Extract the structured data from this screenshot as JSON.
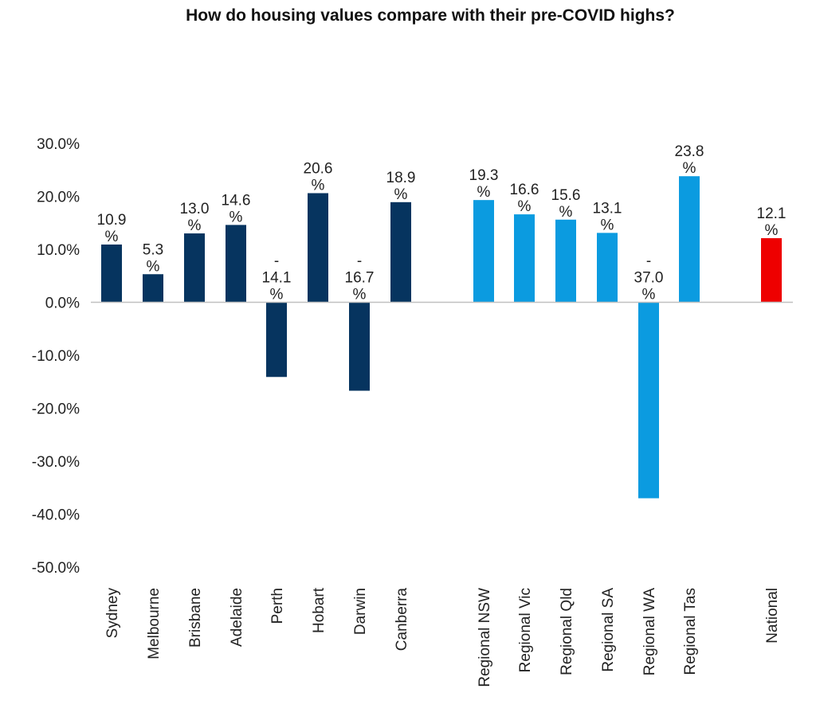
{
  "chart_data": {
    "type": "bar",
    "title": "How do housing values compare with their pre-COVID highs?",
    "xlabel": "",
    "ylabel": "",
    "ylim": [
      -50,
      30
    ],
    "y_ticks": [
      "30.0%",
      "20.0%",
      "10.0%",
      "0.0%",
      "-10.0%",
      "-20.0%",
      "-30.0%",
      "-40.0%",
      "-50.0%"
    ],
    "y_tick_values": [
      30,
      20,
      10,
      0,
      -10,
      -20,
      -30,
      -40,
      -50
    ],
    "grid": false,
    "legend": "none",
    "categories": [
      "Sydney",
      "Melbourne",
      "Brisbane",
      "Adelaide",
      "Perth",
      "Hobart",
      "Darwin",
      "Canberra",
      "Regional NSW",
      "Regional Vic",
      "Regional Qld",
      "Regional SA",
      "Regional WA",
      "Regional Tas",
      "National"
    ],
    "values": [
      10.9,
      5.3,
      13.0,
      14.6,
      -14.1,
      20.6,
      -16.7,
      18.9,
      19.3,
      16.6,
      15.6,
      13.1,
      -37.0,
      23.8,
      12.1
    ],
    "data_labels": [
      [
        "10.9",
        "%"
      ],
      [
        "5.3",
        "%"
      ],
      [
        "13.0",
        "%"
      ],
      [
        "14.6",
        "%"
      ],
      [
        "-",
        "14.1",
        "%"
      ],
      [
        "20.6",
        "%"
      ],
      [
        "-",
        "16.7",
        "%"
      ],
      [
        "18.9",
        "%"
      ],
      [
        "19.3",
        "%"
      ],
      [
        "16.6",
        "%"
      ],
      [
        "15.6",
        "%"
      ],
      [
        "13.1",
        "%"
      ],
      [
        "-",
        "37.0",
        "%"
      ],
      [
        "23.8",
        "%"
      ],
      [
        "12.1",
        "%"
      ]
    ],
    "groups": [
      "capital",
      "capital",
      "capital",
      "capital",
      "capital",
      "capital",
      "capital",
      "capital",
      "regional",
      "regional",
      "regional",
      "regional",
      "regional",
      "regional",
      "national"
    ],
    "colors": {
      "capital": "#06345f",
      "regional": "#0b9be0",
      "national": "#ee0000",
      "axis": "#c0c0c0"
    }
  }
}
